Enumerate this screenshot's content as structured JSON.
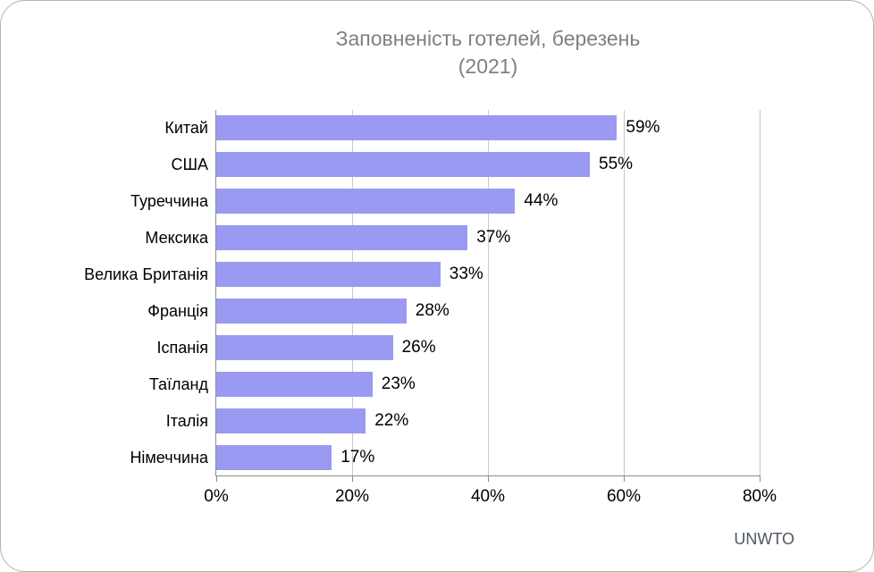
{
  "title": {
    "line1": "Заповненість готелей, березень",
    "line2": "(2021)"
  },
  "source": "UNWTO",
  "chart_data": {
    "type": "bar",
    "orientation": "horizontal",
    "title": "Заповненість готелей, березень (2021)",
    "categories": [
      "Китай",
      "США",
      "Туреччина",
      "Мексика",
      "Велика Британія",
      "Франція",
      "Іспанія",
      "Таїланд",
      "Італія",
      "Німеччина"
    ],
    "values": [
      59,
      55,
      44,
      37,
      33,
      28,
      26,
      23,
      22,
      17
    ],
    "value_labels": [
      "59%",
      "55%",
      "44%",
      "37%",
      "33%",
      "28%",
      "26%",
      "23%",
      "22%",
      "17%"
    ],
    "xlabel": "",
    "ylabel": "",
    "xlim": [
      0,
      80
    ],
    "x_tick_values": [
      0,
      20,
      40,
      60,
      80
    ],
    "x_tick_labels": [
      "0%",
      "20%",
      "40%",
      "60%",
      "80%"
    ],
    "grid": "vertical gridlines at 20% steps",
    "legend": "none",
    "source": "UNWTO",
    "colors": {
      "bar": "#9A9AF2",
      "title": "#808080",
      "labels": "#000000",
      "gridline": "#C9C9C9",
      "axis_line": "#8C8C8C",
      "source_text": "#4F5860",
      "frame_border": "#B3B3B3",
      "background": "#FFFFFF"
    }
  }
}
